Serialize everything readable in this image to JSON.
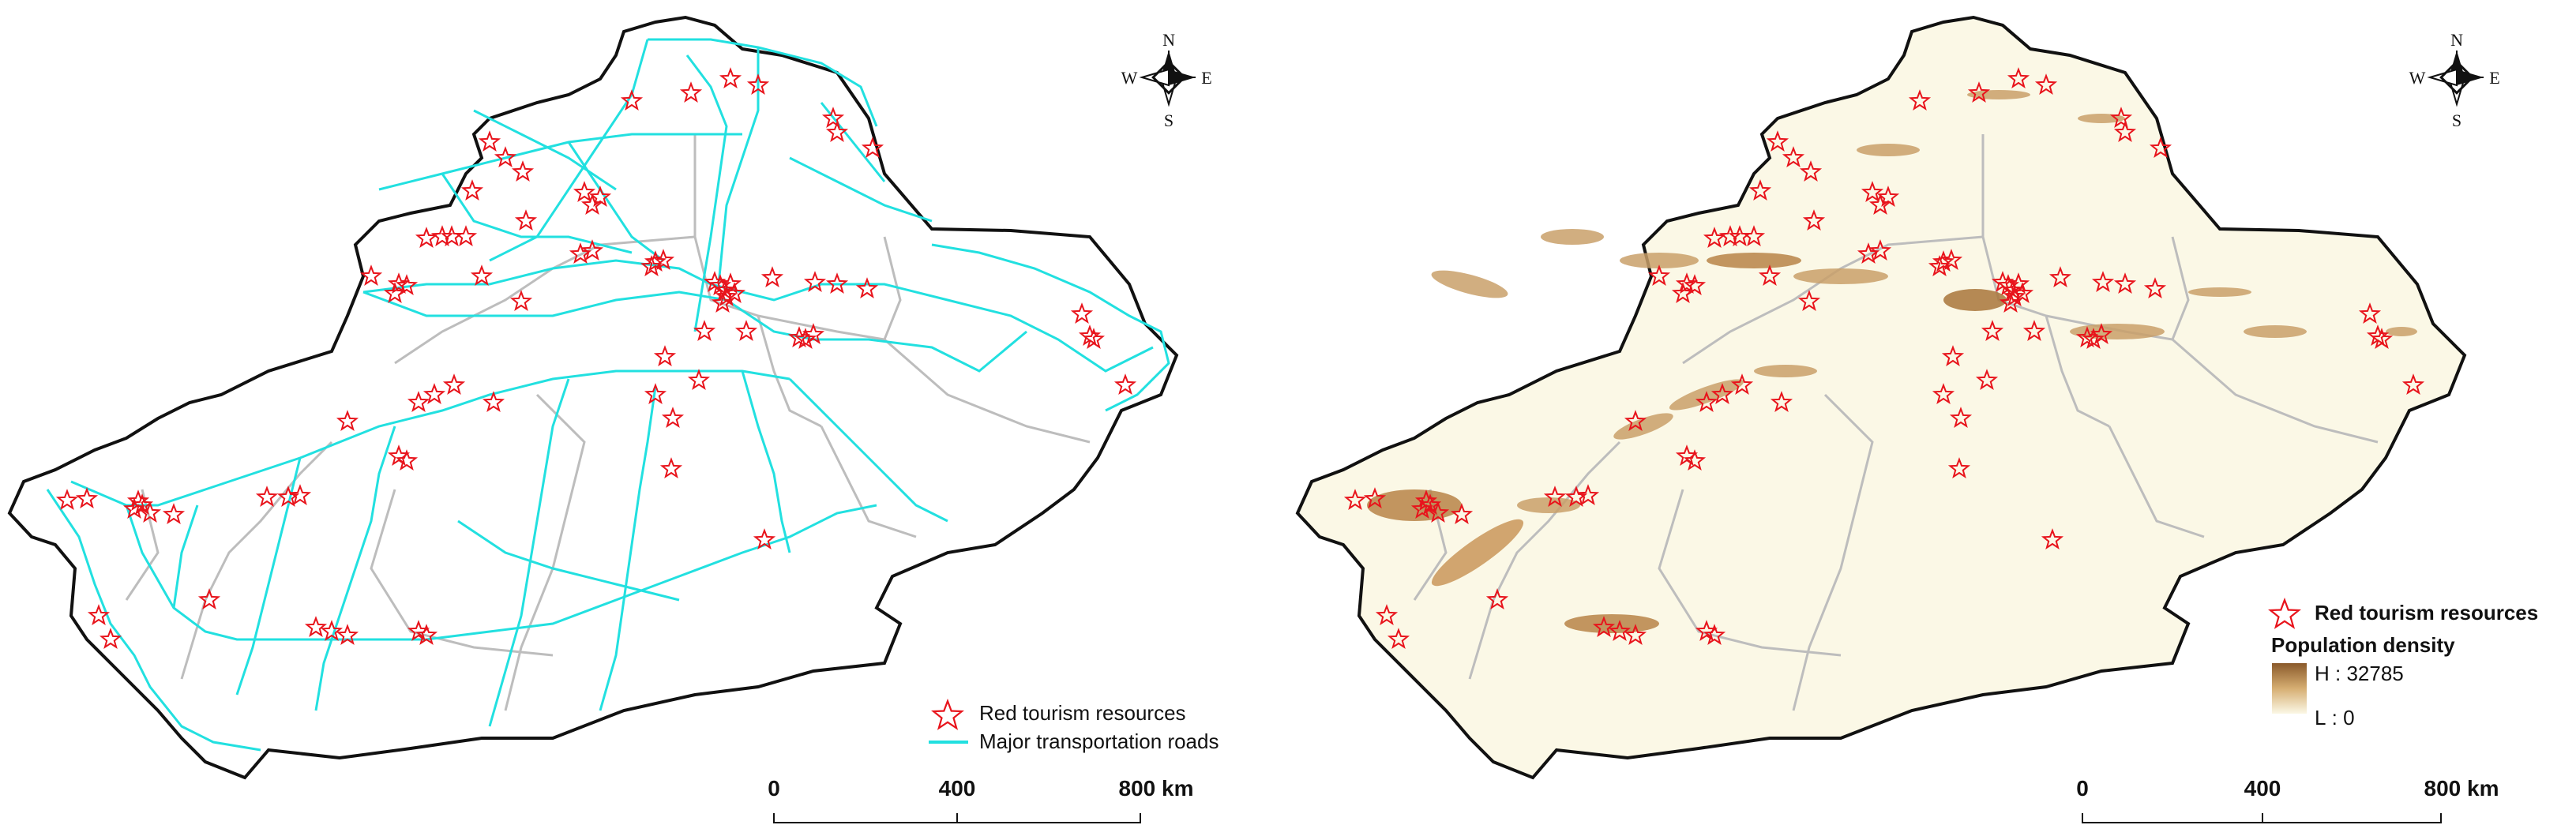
{
  "left_map": {
    "compass": {
      "n": "N",
      "s": "S",
      "e": "E",
      "w": "W"
    },
    "legend": {
      "stars_label": "Red tourism resources",
      "roads_label": "Major transportation roads"
    },
    "scalebar": {
      "t0": "0",
      "t1": "400",
      "t2": "800 km"
    },
    "colors": {
      "road": "#22e0e0",
      "star": "#e8141c",
      "border": "#bdbdbd",
      "outline": "#111111"
    }
  },
  "right_map": {
    "compass": {
      "n": "N",
      "s": "S",
      "e": "E",
      "w": "W"
    },
    "legend": {
      "stars_label": "Red tourism resources",
      "density_title": "Population density",
      "high_label": "H : 32785",
      "low_label": "L : 0"
    },
    "scalebar": {
      "t0": "0",
      "t1": "400",
      "t2": "800 km"
    },
    "colors": {
      "fill": "#fbf8e6",
      "density_high": "#8a5a2b",
      "density_low": "#fbf8e6",
      "star": "#e8141c"
    }
  }
}
